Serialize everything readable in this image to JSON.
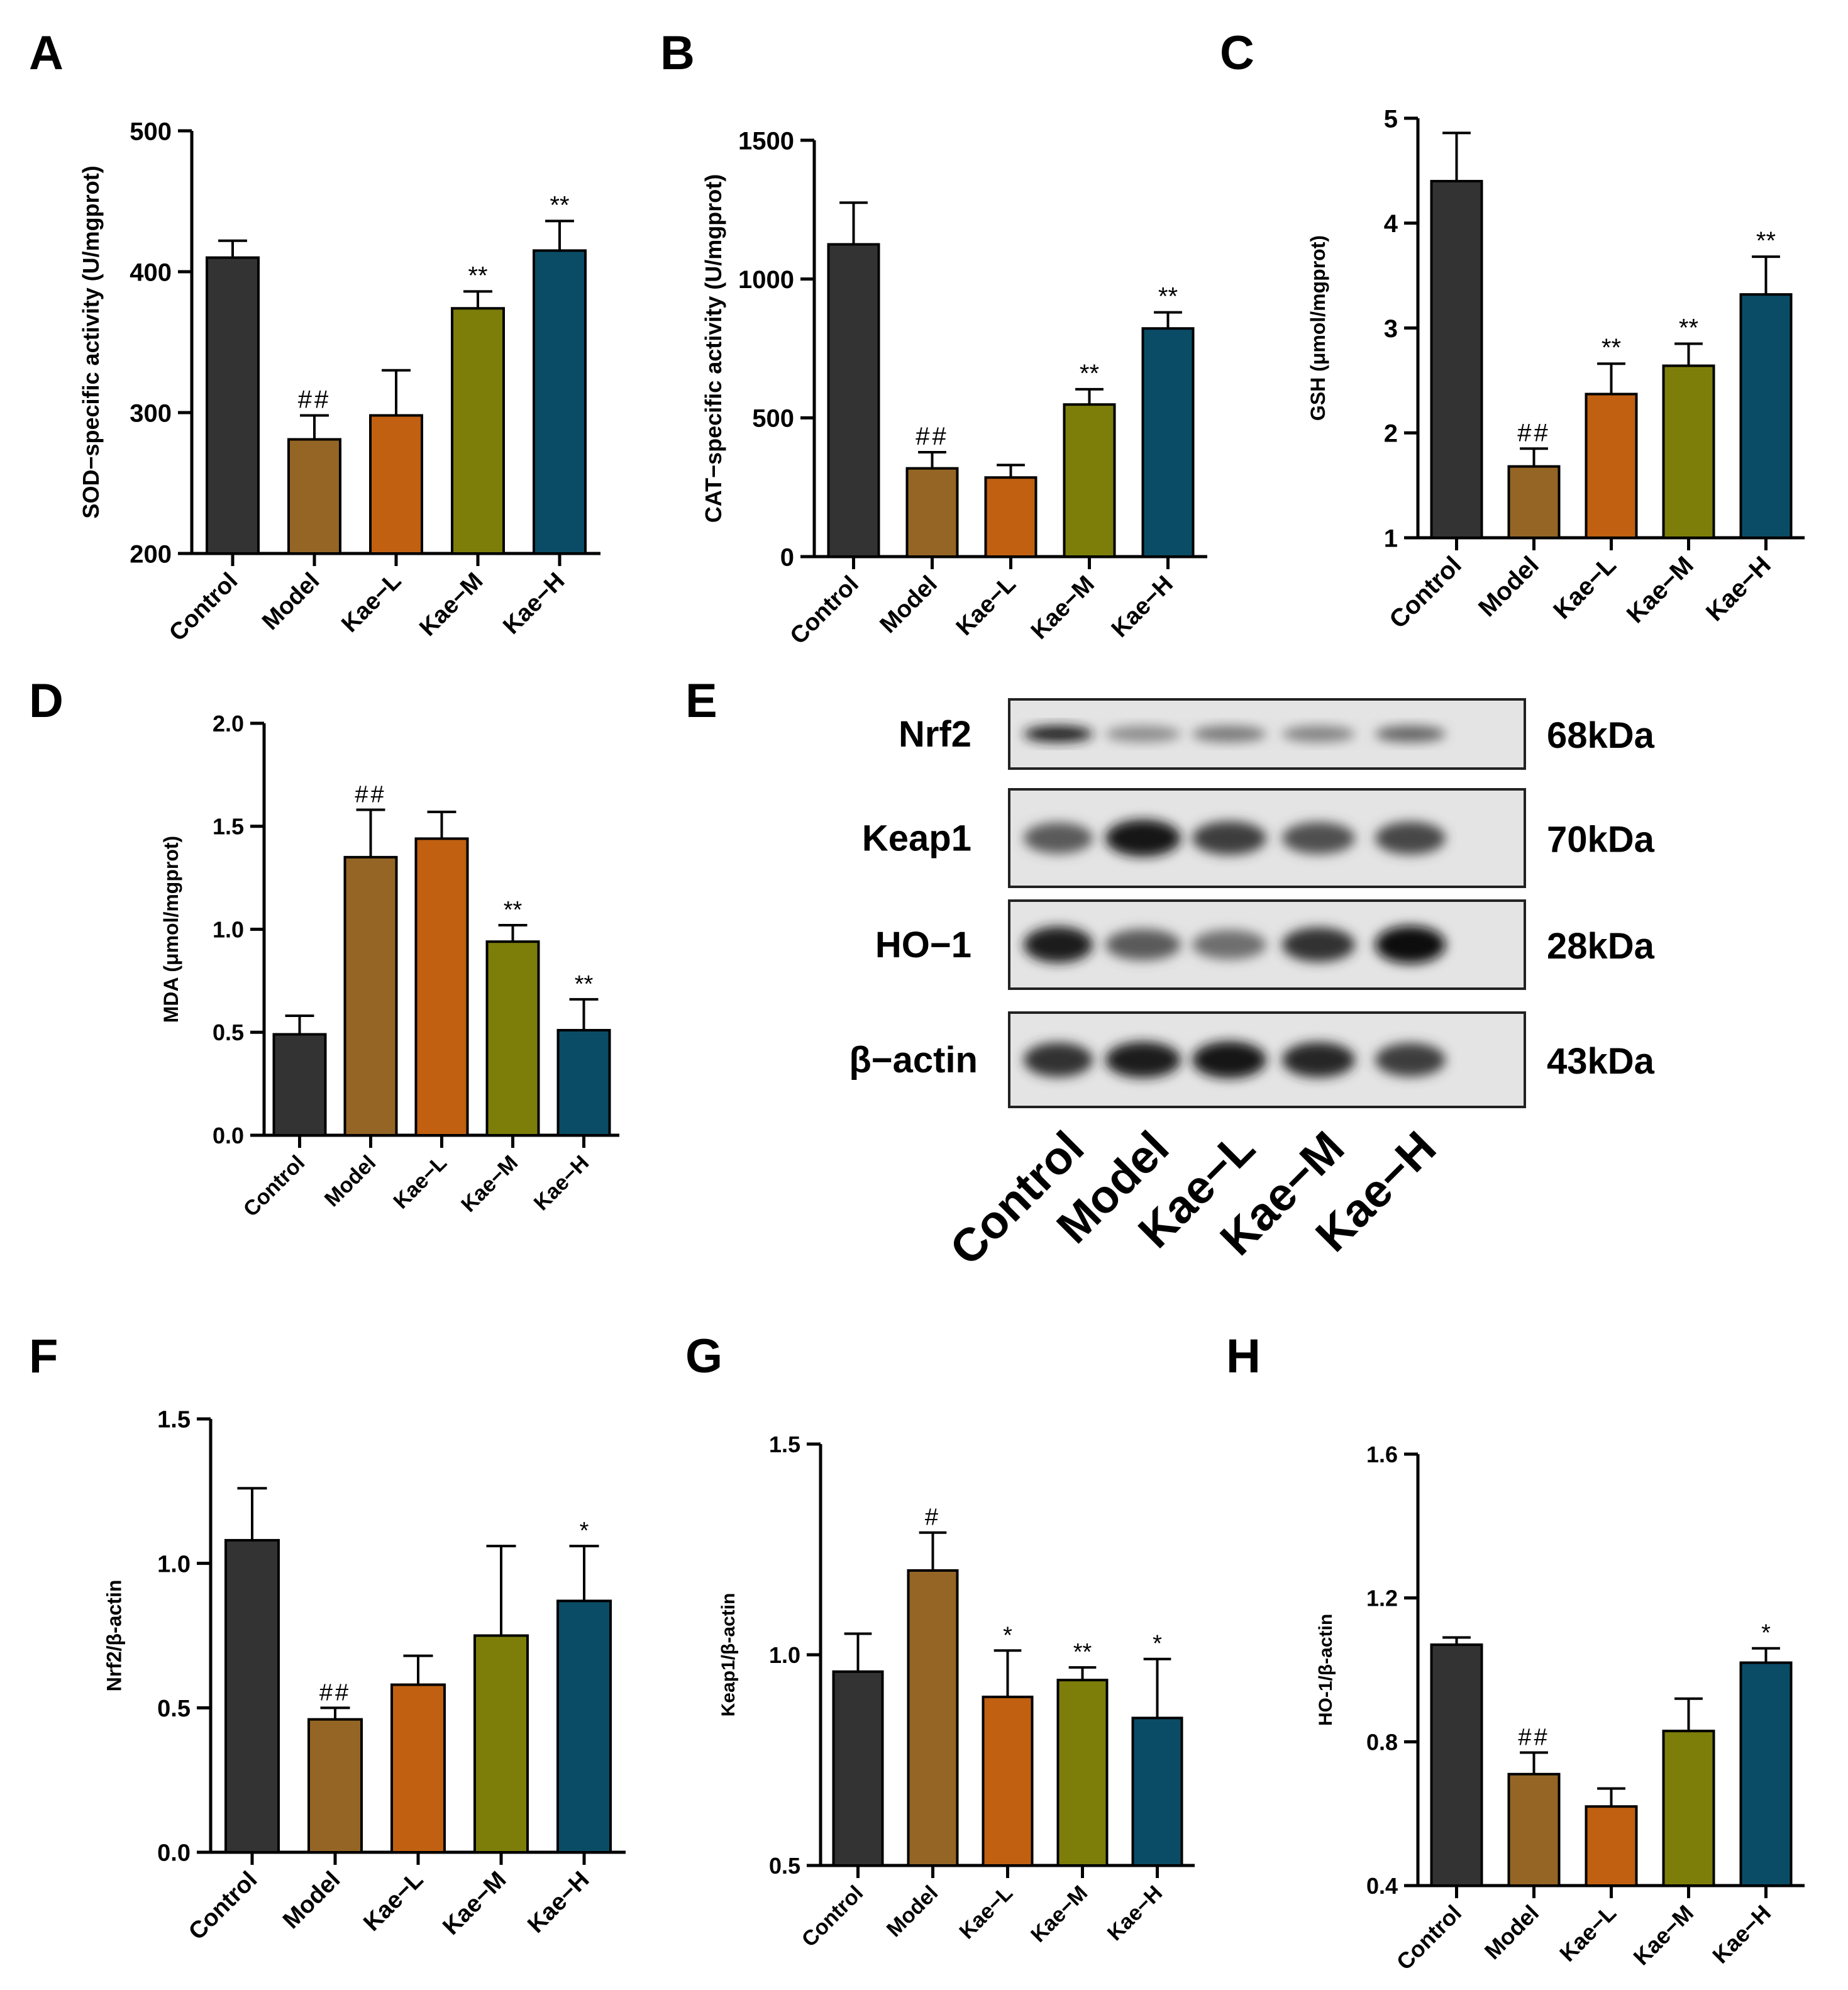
{
  "colors": {
    "control": "#333333",
    "model": "#946524",
    "kae_l": "#c06010",
    "kae_m": "#7d7e0a",
    "kae_h": "#0a4c66",
    "axis": "#000000"
  },
  "chart_data": [
    {
      "panel": "A",
      "type": "bar",
      "title": "",
      "xlabel": "",
      "ylabel": "SOD−specific activity (U/mgprot)",
      "ylim": [
        200,
        500
      ],
      "yticks": [
        200,
        300,
        400,
        500
      ],
      "ytick_labels": [
        "200",
        "300",
        "400",
        "500"
      ],
      "categories": [
        "Control",
        "Model",
        "Kae−L",
        "Kae−M",
        "Kae−H"
      ],
      "values": [
        410,
        281,
        298,
        374,
        415
      ],
      "errors": [
        12,
        17,
        32,
        12,
        21
      ],
      "annotations": [
        "",
        "##",
        "",
        "**",
        "**"
      ]
    },
    {
      "panel": "B",
      "type": "bar",
      "title": "",
      "xlabel": "",
      "ylabel": "CAT−specific activity (U/mgprot)",
      "ylim": [
        0,
        1500
      ],
      "yticks": [
        0,
        500,
        1000,
        1500
      ],
      "ytick_labels": [
        "0",
        "500",
        "1000",
        "1500"
      ],
      "categories": [
        "Control",
        "Model",
        "Kae−L",
        "Kae−M",
        "Kae−H"
      ],
      "values": [
        1125,
        318,
        285,
        548,
        822
      ],
      "errors": [
        150,
        58,
        45,
        55,
        58
      ],
      "annotations": [
        "",
        "##",
        "",
        "**",
        "**"
      ]
    },
    {
      "panel": "C",
      "type": "bar",
      "title": "",
      "xlabel": "",
      "ylabel": "GSH (μmol/mgprot)",
      "ylim": [
        1,
        5
      ],
      "yticks": [
        1,
        2,
        3,
        4,
        5
      ],
      "ytick_labels": [
        "1",
        "2",
        "3",
        "4",
        "5"
      ],
      "categories": [
        "Control",
        "Model",
        "Kae−L",
        "Kae−M",
        "Kae−H"
      ],
      "values": [
        4.4,
        1.68,
        2.37,
        2.64,
        3.32
      ],
      "errors": [
        0.46,
        0.17,
        0.29,
        0.21,
        0.36
      ],
      "annotations": [
        "",
        "##",
        "**",
        "**",
        "**"
      ]
    },
    {
      "panel": "D",
      "type": "bar",
      "title": "",
      "xlabel": "",
      "ylabel": "MDA (μmol/mgprot)",
      "ylim": [
        0,
        2
      ],
      "yticks": [
        0,
        0.5,
        1,
        1.5,
        2
      ],
      "ytick_labels": [
        "0.0",
        "0.5",
        "1.0",
        "1.5",
        "2.0"
      ],
      "categories": [
        "Control",
        "Model",
        "Kae−L",
        "Kae−M",
        "Kae−H"
      ],
      "values": [
        0.49,
        1.35,
        1.44,
        0.94,
        0.51
      ],
      "errors": [
        0.09,
        0.23,
        0.13,
        0.08,
        0.15
      ],
      "annotations": [
        "",
        "##",
        "",
        "**",
        "**"
      ]
    },
    {
      "panel": "F",
      "type": "bar",
      "title": "",
      "xlabel": "",
      "ylabel": "Nrf2/β-actin",
      "ylim": [
        0,
        1.5
      ],
      "yticks": [
        0,
        0.5,
        1,
        1.5
      ],
      "ytick_labels": [
        "0.0",
        "0.5",
        "1.0",
        "1.5"
      ],
      "categories": [
        "Control",
        "Model",
        "Kae−L",
        "Kae−M",
        "Kae−H"
      ],
      "values": [
        1.08,
        0.46,
        0.58,
        0.75,
        0.87
      ],
      "errors": [
        0.18,
        0.04,
        0.1,
        0.31,
        0.19
      ],
      "annotations": [
        "",
        "##",
        "",
        "",
        "*"
      ]
    },
    {
      "panel": "G",
      "type": "bar",
      "title": "",
      "xlabel": "",
      "ylabel": "Keap1/β-actin",
      "ylim": [
        0.5,
        1.5
      ],
      "yticks": [
        0.5,
        1,
        1.5
      ],
      "ytick_labels": [
        "0.5",
        "1.0",
        "1.5"
      ],
      "categories": [
        "Control",
        "Model",
        "Kae−L",
        "Kae−M",
        "Kae−H"
      ],
      "values": [
        0.96,
        1.2,
        0.9,
        0.94,
        0.85
      ],
      "errors": [
        0.09,
        0.09,
        0.11,
        0.03,
        0.14
      ],
      "annotations": [
        "",
        "#",
        "*",
        "**",
        "*"
      ]
    },
    {
      "panel": "H",
      "type": "bar",
      "title": "",
      "xlabel": "",
      "ylabel": "HO-1/β-actin",
      "ylim": [
        0.4,
        1.6
      ],
      "yticks": [
        0.4,
        0.8,
        1.2,
        1.6
      ],
      "ytick_labels": [
        "0.4",
        "0.8",
        "1.2",
        "1.6"
      ],
      "categories": [
        "Control",
        "Model",
        "Kae−L",
        "Kae−M",
        "Kae−H"
      ],
      "values": [
        1.07,
        0.71,
        0.62,
        0.83,
        1.02
      ],
      "errors": [
        0.02,
        0.06,
        0.05,
        0.09,
        0.04
      ],
      "annotations": [
        "",
        "##",
        "",
        "",
        "*"
      ]
    }
  ],
  "blot": {
    "panel": "E",
    "rows": [
      {
        "protein": "Nrf2",
        "kda": "68kDa",
        "intensities": [
          0.9,
          0.35,
          0.45,
          0.4,
          0.55
        ]
      },
      {
        "protein": "Keap1",
        "kda": "70kDa",
        "intensities": [
          0.6,
          0.95,
          0.75,
          0.65,
          0.7
        ]
      },
      {
        "protein": "HO−1",
        "kda": "28kDa",
        "intensities": [
          0.9,
          0.6,
          0.5,
          0.8,
          1.0
        ]
      },
      {
        "protein": "β−actin",
        "kda": "43kDa",
        "intensities": [
          0.8,
          0.9,
          0.95,
          0.85,
          0.75
        ]
      }
    ],
    "lanes": [
      "Control",
      "Model",
      "Kae−L",
      "Kae−M",
      "Kae−H"
    ]
  }
}
